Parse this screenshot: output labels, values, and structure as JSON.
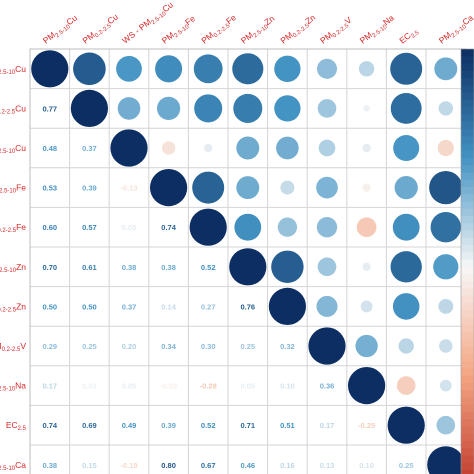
{
  "chart_data": {
    "type": "heatmap",
    "style": "correlation matrix: circles in upper triangle and on diagonal, numeric coefficients in lower triangle",
    "variables": [
      {
        "main": "PM",
        "sub": "2.5-10",
        "tail": "Cu"
      },
      {
        "main": "PM",
        "sub": "0.2-2.5",
        "tail": "Cu"
      },
      {
        "main": "WS - PM",
        "sub": "2.5-10",
        "tail": "Cu"
      },
      {
        "main": "PM",
        "sub": "2.5-10",
        "tail": "Fe"
      },
      {
        "main": "PM",
        "sub": "0.2-2.5",
        "tail": "Fe"
      },
      {
        "main": "PM",
        "sub": "2.5-10",
        "tail": "Zn"
      },
      {
        "main": "PM",
        "sub": "0.2-2.5",
        "tail": "Zn"
      },
      {
        "main": "PM",
        "sub": "0.2-2.5",
        "tail": "V"
      },
      {
        "main": "PM",
        "sub": "2.5-10",
        "tail": "Na"
      },
      {
        "main": "EC",
        "sub": "2.5",
        "tail": ""
      },
      {
        "main": "PM",
        "sub": "2.5-10",
        "tail": "Ca"
      }
    ],
    "matrix": [
      [
        1.0,
        0.77,
        0.48,
        0.53,
        0.6,
        0.7,
        0.5,
        0.29,
        0.17,
        0.74,
        0.38
      ],
      [
        0.77,
        1.0,
        0.37,
        0.39,
        0.57,
        0.61,
        0.5,
        0.25,
        0.03,
        0.69,
        0.15
      ],
      [
        0.48,
        0.37,
        1.0,
        -0.13,
        0.05,
        0.38,
        0.37,
        0.2,
        0.05,
        0.49,
        -0.19
      ],
      [
        0.53,
        0.39,
        -0.13,
        1.0,
        0.74,
        0.38,
        0.14,
        0.34,
        -0.05,
        0.39,
        0.8
      ],
      [
        0.6,
        0.57,
        0.05,
        0.74,
        1.0,
        0.52,
        0.27,
        0.3,
        -0.28,
        0.52,
        0.67
      ],
      [
        0.7,
        0.61,
        0.38,
        0.38,
        0.52,
        1.0,
        0.76,
        0.25,
        0.05,
        0.71,
        0.46
      ],
      [
        0.5,
        0.5,
        0.37,
        0.14,
        0.27,
        0.76,
        1.0,
        0.32,
        0.1,
        0.51,
        0.16
      ],
      [
        0.29,
        0.25,
        0.2,
        0.34,
        0.3,
        0.25,
        0.32,
        1.0,
        0.36,
        0.17,
        0.13
      ],
      [
        0.17,
        0.03,
        0.05,
        -0.05,
        -0.28,
        0.05,
        0.1,
        0.36,
        1.0,
        -0.25,
        0.1
      ],
      [
        0.74,
        0.69,
        0.49,
        0.39,
        0.52,
        0.71,
        0.51,
        0.17,
        -0.25,
        1.0,
        0.25
      ],
      [
        0.38,
        0.15,
        -0.19,
        0.8,
        0.67,
        0.46,
        0.16,
        0.13,
        0.1,
        0.25,
        1.0
      ]
    ],
    "value_range": [
      -1,
      1
    ],
    "colors": {
      "negative": "#c0392b",
      "zero": "#f7f7f7",
      "positive": "#0c2e63",
      "labels": "#d62728"
    },
    "legend": "colorbar at right edge",
    "grid": true
  }
}
